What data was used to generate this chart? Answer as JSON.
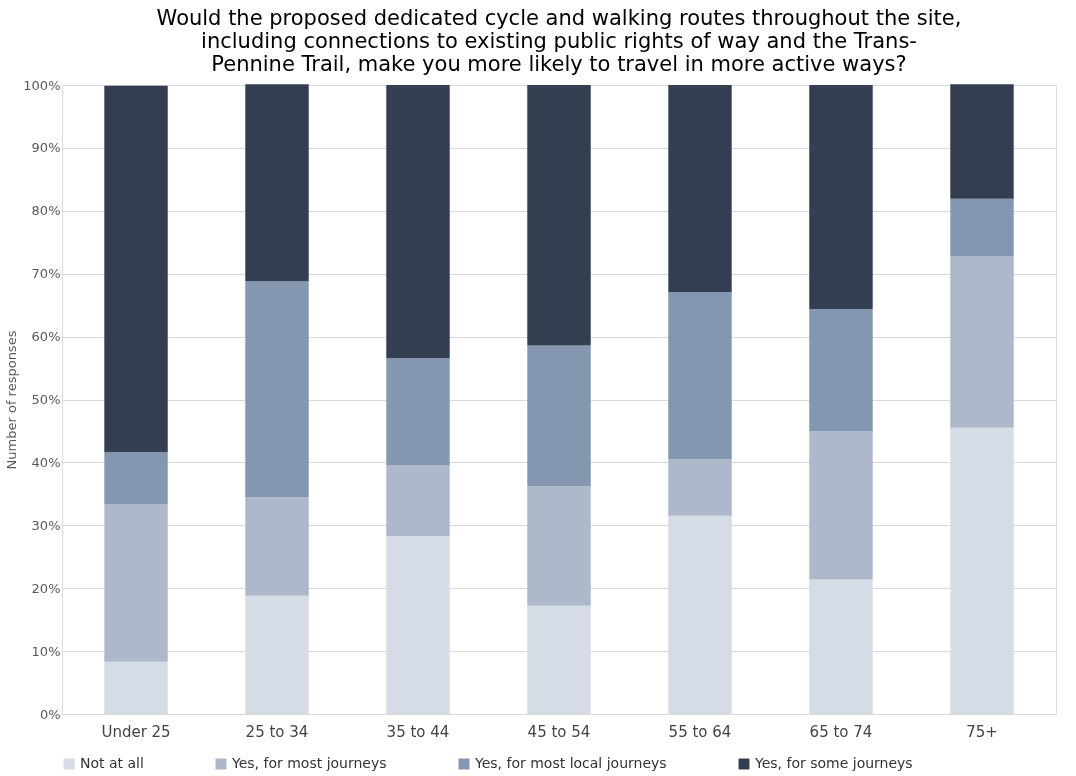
{
  "chart_data": {
    "type": "bar",
    "stacked": true,
    "title": "Would the proposed dedicated cycle and walking routes throughout the site, including connections to existing public rights of way and the Trans-Pennine Trail, make you more likely to travel in more active ways?",
    "ylabel": "Number of responses",
    "categories": [
      "Under 25",
      "25 to 34",
      "35 to 44",
      "45 to 54",
      "55 to 64",
      "65 to 74",
      "75+"
    ],
    "series": [
      {
        "name": "Not at all",
        "color": "#d6dce5",
        "values": [
          8.3,
          18.8,
          28.3,
          17.2,
          31.5,
          21.4,
          45.5
        ]
      },
      {
        "name": "Yes, for most journeys",
        "color": "#adb9ca",
        "values": [
          25.0,
          15.6,
          11.3,
          19.0,
          9.0,
          23.6,
          27.3
        ]
      },
      {
        "name": "Yes, for most local journeys",
        "color": "#8497b0",
        "values": [
          8.3,
          34.4,
          17.0,
          22.4,
          26.6,
          19.4,
          9.1
        ]
      },
      {
        "name": "Yes, for some journeys",
        "color": "#333f50",
        "values": [
          58.3,
          31.3,
          43.4,
          41.4,
          32.9,
          35.6,
          18.2
        ]
      }
    ],
    "ylim": [
      0,
      100
    ],
    "yticks": [
      {
        "value": 0,
        "label": "0%"
      },
      {
        "value": 10,
        "label": "10%"
      },
      {
        "value": 20,
        "label": "20%"
      },
      {
        "value": 30,
        "label": "30%"
      },
      {
        "value": 40,
        "label": "40%"
      },
      {
        "value": 50,
        "label": "50%"
      },
      {
        "value": 60,
        "label": "60%"
      },
      {
        "value": 70,
        "label": "70%"
      },
      {
        "value": 80,
        "label": "80%"
      },
      {
        "value": 90,
        "label": "90%"
      },
      {
        "value": 100,
        "label": "100%"
      }
    ],
    "grid": "y",
    "legend": "bottom"
  }
}
